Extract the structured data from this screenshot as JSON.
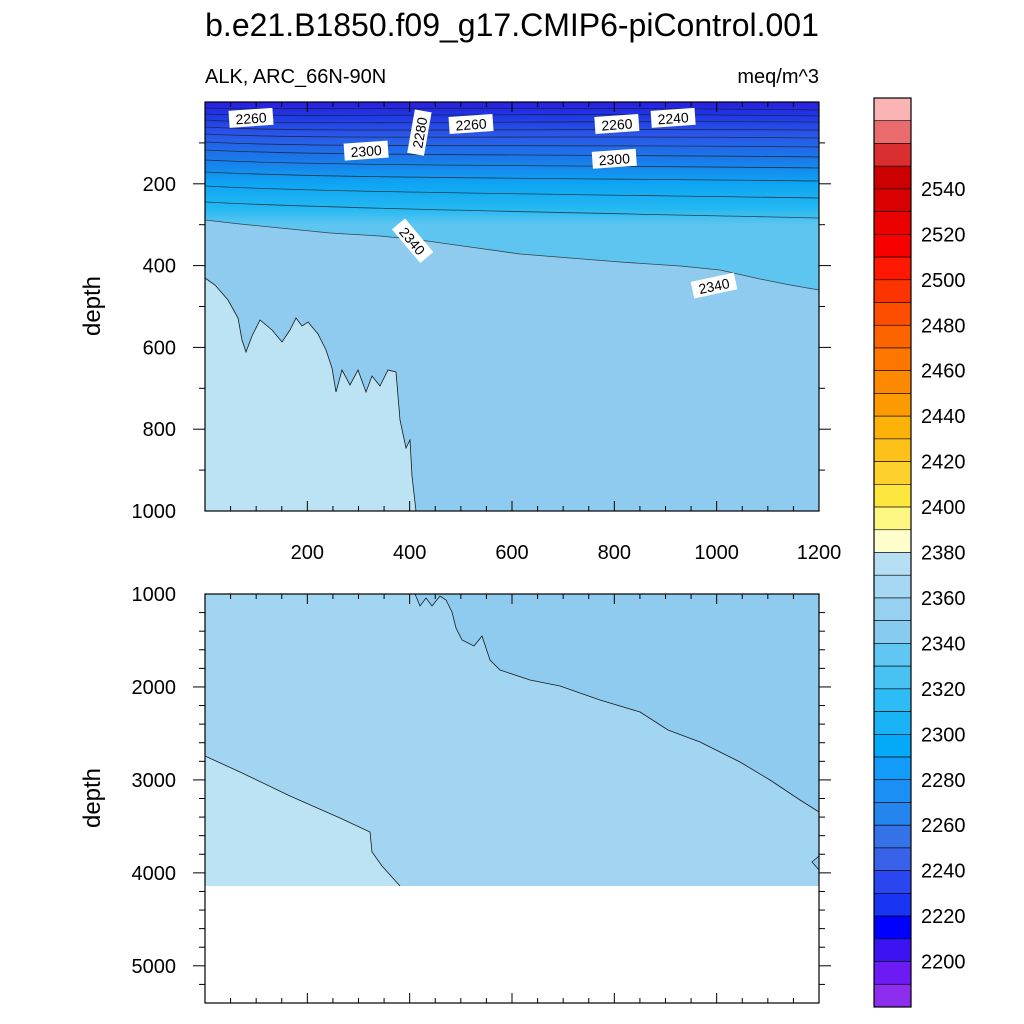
{
  "title": "b.e21.B1850.f09_g17.CMIP6-piControl.001",
  "subtitle_left": "ALK, ARC_66N-90N",
  "subtitle_right": "meq/m^3",
  "chart_data": [
    {
      "type": "contour",
      "panel": "upper",
      "ylabel": "depth",
      "xlabel": "",
      "xlim": [
        0,
        1200
      ],
      "ylim": [
        1000,
        0
      ],
      "x_ticks": [
        200,
        400,
        600,
        800,
        1000,
        1200
      ],
      "y_ticks": [
        200,
        400,
        600,
        800,
        1000
      ],
      "contour_labels": [
        {
          "text": "2260",
          "x": 90,
          "depth": 40
        },
        {
          "text": "2280",
          "x": 420,
          "depth": 75
        },
        {
          "text": "2260",
          "x": 520,
          "depth": 55
        },
        {
          "text": "2260",
          "x": 805,
          "depth": 55
        },
        {
          "text": "2240",
          "x": 915,
          "depth": 40
        },
        {
          "text": "2300",
          "x": 315,
          "depth": 120
        },
        {
          "text": "2300",
          "x": 800,
          "depth": 140
        },
        {
          "text": "2340",
          "x": 405,
          "depth": 340
        },
        {
          "text": "2340",
          "x": 995,
          "depth": 450
        }
      ]
    },
    {
      "type": "contour",
      "panel": "lower",
      "ylabel": "depth",
      "xlabel": "",
      "xlim": [
        0,
        1200
      ],
      "ylim": [
        5400,
        1000
      ],
      "y_ticks": [
        1000,
        2000,
        3000,
        4000,
        5000
      ],
      "data_bottom_depth": 4120
    }
  ],
  "colorbar": {
    "labels": [
      "2200",
      "2220",
      "2240",
      "2260",
      "2280",
      "2300",
      "2320",
      "2340",
      "2360",
      "2380",
      "2400",
      "2420",
      "2440",
      "2460",
      "2480",
      "2500",
      "2520",
      "2540"
    ],
    "colors": [
      "#8d2eef",
      "#6d1bf3",
      "#3c14f4",
      "#0000ff",
      "#1a34f3",
      "#2a47ef",
      "#3a62e8",
      "#3572e8",
      "#2585ee",
      "#1b8ff4",
      "#139bfa",
      "#04aaf8",
      "#1ab3f5",
      "#2ebcf6",
      "#48c2f2",
      "#60c6f2",
      "#88cbf0",
      "#97d0f1",
      "#a6d8f3",
      "#b6dff3",
      "#fdfecb",
      "#fdf683",
      "#fde63e",
      "#fdd02c",
      "#fdc119",
      "#fdb209",
      "#fd9a00",
      "#fd8900",
      "#fc7600",
      "#fc6400",
      "#fd4e00",
      "#fb3400",
      "#ff1800",
      "#f80000",
      "#eb0000",
      "#d80000",
      "#cc0000",
      "#d92f30",
      "#e96b6b",
      "#fbb4b4"
    ]
  }
}
